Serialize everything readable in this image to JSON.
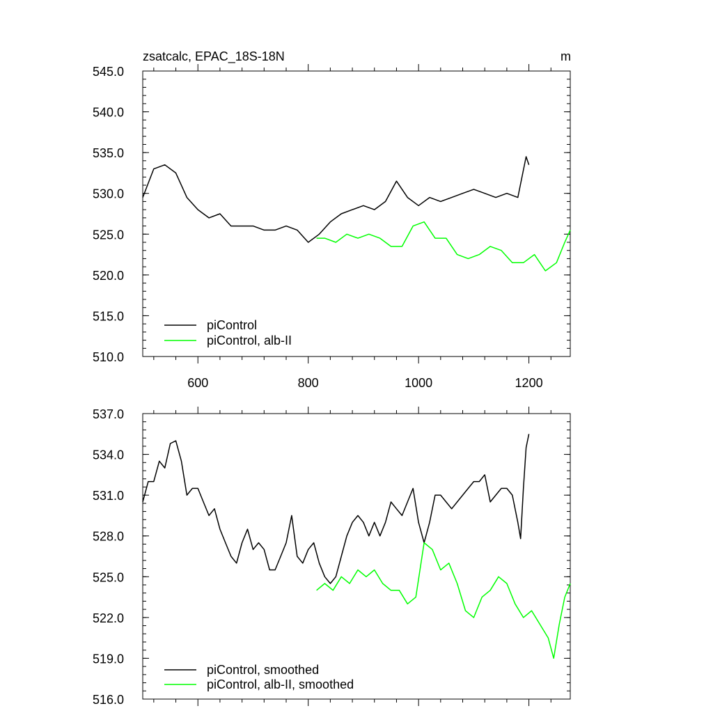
{
  "chart_data": [
    {
      "type": "line",
      "title": "zsatcalc, EPAC_18S-18N",
      "units": "m",
      "xlim": [
        500,
        1275
      ],
      "ylim": [
        510,
        545
      ],
      "xticks": [
        600,
        800,
        1000,
        1200
      ],
      "xtick_labels": [
        "600",
        "800",
        "1000",
        "1200"
      ],
      "yticks": [
        510,
        515,
        520,
        525,
        530,
        535,
        540,
        545
      ],
      "ytick_labels": [
        "510.0",
        "515.0",
        "520.0",
        "525.0",
        "530.0",
        "535.0",
        "540.0",
        "545.0"
      ],
      "legend": "bottom-left",
      "series": [
        {
          "name": "piControl",
          "color": "#000000",
          "x": [
            500,
            520,
            540,
            560,
            580,
            600,
            620,
            640,
            660,
            680,
            700,
            720,
            740,
            760,
            780,
            800,
            820,
            840,
            860,
            880,
            900,
            920,
            940,
            960,
            980,
            1000,
            1020,
            1040,
            1060,
            1080,
            1100,
            1120,
            1140,
            1160,
            1180,
            1195,
            1200
          ],
          "values": [
            529.5,
            533.0,
            533.5,
            532.5,
            529.5,
            528.0,
            527.0,
            527.5,
            526.0,
            526.0,
            526.0,
            525.5,
            525.5,
            526.0,
            525.5,
            524.0,
            525.0,
            526.5,
            527.5,
            528.0,
            528.5,
            528.0,
            529.0,
            531.5,
            529.5,
            528.5,
            529.5,
            529.0,
            529.5,
            530.0,
            530.5,
            530.0,
            529.5,
            530.0,
            529.5,
            534.5,
            533.5
          ]
        },
        {
          "name": "piControl, alb-II",
          "color": "#00ff00",
          "x": [
            815,
            830,
            850,
            870,
            890,
            910,
            930,
            950,
            970,
            990,
            1010,
            1030,
            1050,
            1070,
            1090,
            1110,
            1130,
            1150,
            1170,
            1190,
            1210,
            1230,
            1250,
            1265,
            1275
          ],
          "values": [
            524.5,
            524.5,
            524.0,
            525.0,
            524.5,
            525.0,
            524.5,
            523.5,
            523.5,
            526.0,
            526.5,
            524.5,
            524.5,
            522.5,
            522.0,
            522.5,
            523.5,
            523.0,
            521.5,
            521.5,
            522.5,
            520.5,
            521.5,
            524.0,
            525.5
          ]
        }
      ]
    },
    {
      "type": "line",
      "xlim": [
        500,
        1275
      ],
      "ylim": [
        516,
        537
      ],
      "xticks": [
        600,
        800,
        1000,
        1200
      ],
      "yticks": [
        516,
        519,
        522,
        525,
        528,
        531,
        534,
        537
      ],
      "ytick_labels": [
        "516.0",
        "519.0",
        "522.0",
        "525.0",
        "528.0",
        "531.0",
        "534.0",
        "537.0"
      ],
      "legend": "bottom-left",
      "series": [
        {
          "name": "piControl, smoothed",
          "color": "#000000",
          "x": [
            500,
            510,
            520,
            530,
            540,
            550,
            560,
            570,
            580,
            590,
            600,
            610,
            620,
            630,
            640,
            650,
            660,
            670,
            680,
            690,
            700,
            710,
            720,
            730,
            740,
            750,
            760,
            770,
            780,
            790,
            800,
            810,
            820,
            830,
            840,
            850,
            860,
            870,
            880,
            890,
            900,
            910,
            920,
            930,
            940,
            950,
            960,
            970,
            980,
            990,
            1000,
            1010,
            1020,
            1030,
            1040,
            1050,
            1060,
            1070,
            1080,
            1090,
            1100,
            1110,
            1120,
            1130,
            1140,
            1150,
            1160,
            1170,
            1180,
            1185,
            1190,
            1195,
            1200
          ],
          "values": [
            530.5,
            532.0,
            532.0,
            533.5,
            533.0,
            534.8,
            535.0,
            533.5,
            531.0,
            531.5,
            531.5,
            530.5,
            529.5,
            530.0,
            528.5,
            527.5,
            526.5,
            526.0,
            527.5,
            528.5,
            527.0,
            527.5,
            527.0,
            525.5,
            525.5,
            526.5,
            527.5,
            529.5,
            526.5,
            526.0,
            527.0,
            527.5,
            526.0,
            525.0,
            524.5,
            525.0,
            526.5,
            528.0,
            529.0,
            529.5,
            529.0,
            528.0,
            529.0,
            528.0,
            529.0,
            530.5,
            530.0,
            529.5,
            530.5,
            531.5,
            529.0,
            527.5,
            529.0,
            531.0,
            531.0,
            530.5,
            530.0,
            530.5,
            531.0,
            531.5,
            532.0,
            532.0,
            532.5,
            530.5,
            531.0,
            531.5,
            531.5,
            531.0,
            529.0,
            527.8,
            531.5,
            534.5,
            535.5
          ]
        },
        {
          "name": "piControl, alb-II, smoothed",
          "color": "#00ff00",
          "x": [
            815,
            830,
            845,
            860,
            875,
            890,
            905,
            920,
            935,
            950,
            965,
            980,
            995,
            1010,
            1025,
            1040,
            1055,
            1070,
            1085,
            1100,
            1115,
            1130,
            1145,
            1160,
            1175,
            1190,
            1205,
            1220,
            1235,
            1245,
            1255,
            1265,
            1275
          ],
          "values": [
            524.0,
            524.5,
            524.0,
            525.0,
            524.5,
            525.5,
            525.0,
            525.5,
            524.5,
            524.0,
            524.0,
            523.0,
            523.5,
            527.5,
            527.0,
            525.5,
            526.0,
            524.5,
            522.5,
            522.0,
            523.5,
            524.0,
            525.0,
            524.5,
            523.0,
            522.0,
            522.5,
            521.5,
            520.5,
            519.0,
            521.5,
            523.5,
            524.5
          ]
        }
      ]
    }
  ]
}
